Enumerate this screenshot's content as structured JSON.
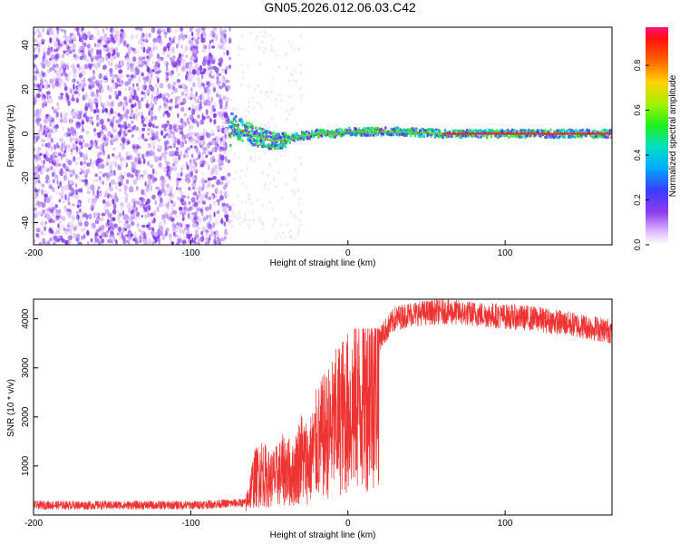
{
  "figure_title": "GN05.2026.012.06.03.C42",
  "colors": {
    "signal": "#ee3333",
    "frame": "#000000"
  },
  "chart_data": [
    {
      "type": "heatmap",
      "title": "GN05.2026.012.06.03.C42",
      "xlabel": "Height of straight line (km)",
      "ylabel": "Frequency (Hz)",
      "xlim": [
        -200,
        168
      ],
      "ylim": [
        -50,
        48
      ],
      "x_ticks": [
        "-200",
        "-100",
        "0",
        "100"
      ],
      "y_ticks": [
        "-40",
        "-20",
        "0",
        "20",
        "40"
      ],
      "colorbar": {
        "label": "Normalized spectral amplitude",
        "range": [
          0,
          0.97
        ],
        "ticks": [
          "0.0",
          "0.2",
          "0.4",
          "0.6",
          "0.8"
        ]
      },
      "regions": [
        {
          "x_range": [
            -200,
            -75
          ],
          "description": "noise",
          "amplitude": 0.05
        },
        {
          "x_range": [
            -75,
            168
          ],
          "description": "signal band near 0 Hz",
          "amplitude": 0.9
        }
      ],
      "signal_center_hz": [
        [
          -75,
          6
        ],
        [
          -70,
          2
        ],
        [
          -60,
          -1
        ],
        [
          -50,
          -3
        ],
        [
          -40,
          -3
        ],
        [
          -30,
          -1
        ],
        [
          -20,
          0
        ],
        [
          -10,
          0
        ],
        [
          0,
          1
        ],
        [
          10,
          1
        ],
        [
          30,
          1
        ],
        [
          60,
          0
        ],
        [
          100,
          0
        ],
        [
          168,
          0
        ]
      ]
    },
    {
      "type": "line",
      "xlabel": "Height of straight line (km)",
      "ylabel": "SNR (10 * v/v)",
      "xlim": [
        -200,
        168
      ],
      "ylim": [
        0,
        4400
      ],
      "x_ticks": [
        "-200",
        "-100",
        "0",
        "100"
      ],
      "y_ticks": [
        "1000",
        "2000",
        "3000",
        "4000"
      ],
      "series": [
        {
          "name": "SNR",
          "envelope": [
            [
              -200,
              200
            ],
            [
              -100,
              200
            ],
            [
              -65,
              250
            ],
            [
              -60,
              900
            ],
            [
              -55,
              1100
            ],
            [
              -50,
              900
            ],
            [
              -45,
              1000
            ],
            [
              -40,
              1200
            ],
            [
              -35,
              1000
            ],
            [
              -30,
              1500
            ],
            [
              -25,
              1300
            ],
            [
              -20,
              1800
            ],
            [
              -15,
              2000
            ],
            [
              -10,
              2200
            ],
            [
              -5,
              2500
            ],
            [
              0,
              2600
            ],
            [
              10,
              3000
            ],
            [
              20,
              3600
            ],
            [
              30,
              4000
            ],
            [
              40,
              4100
            ],
            [
              60,
              4150
            ],
            [
              80,
              4100
            ],
            [
              100,
              4050
            ],
            [
              120,
              4000
            ],
            [
              140,
              3900
            ],
            [
              168,
              3750
            ]
          ]
        }
      ]
    }
  ]
}
